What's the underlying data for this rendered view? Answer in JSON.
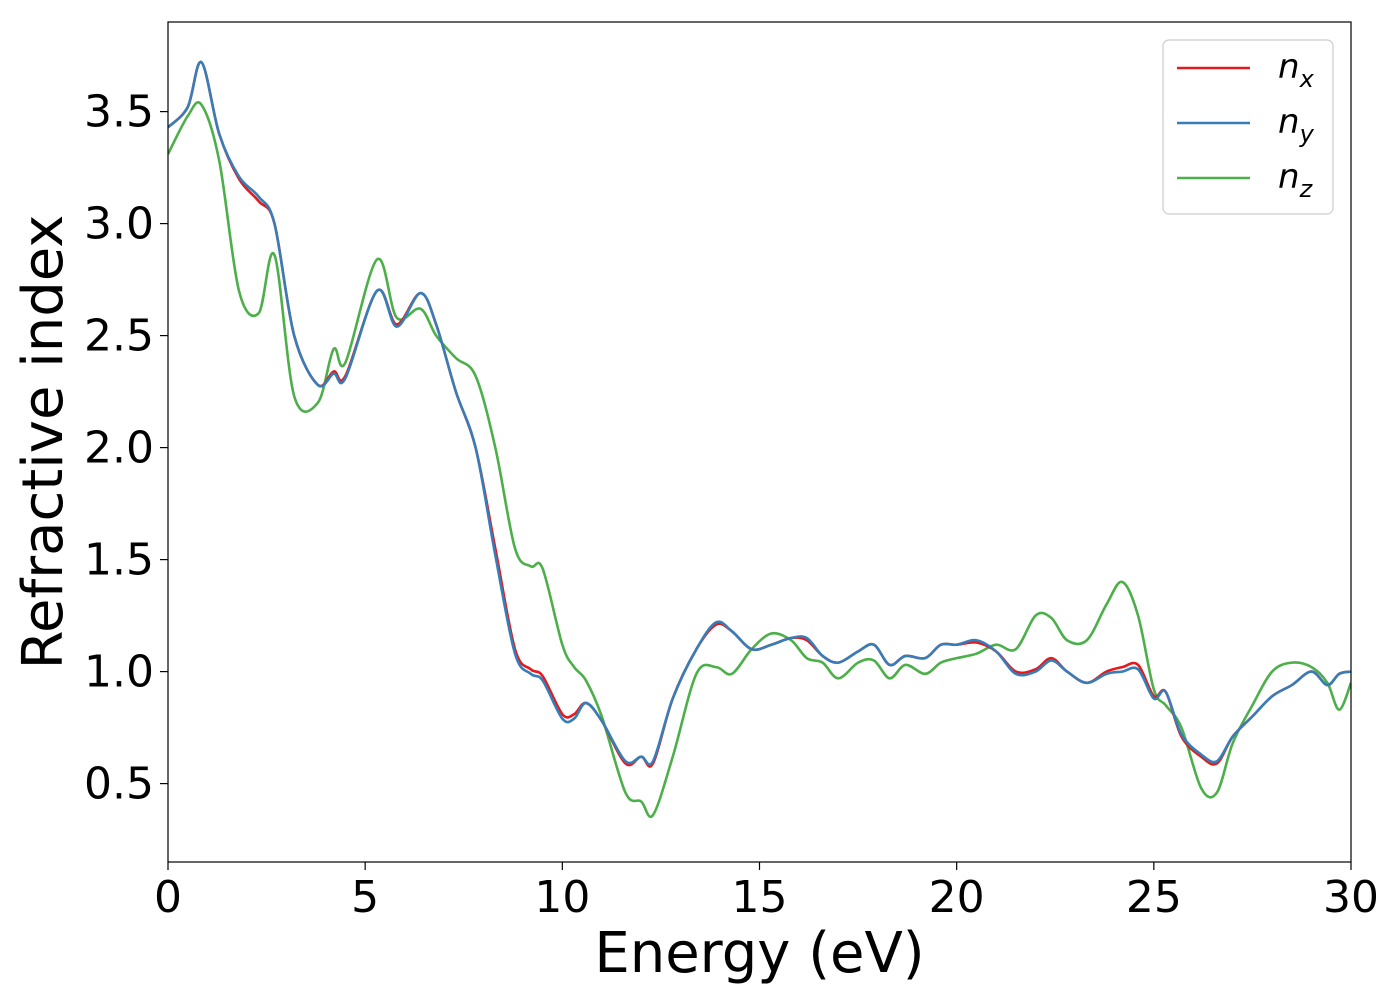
{
  "chart_data": {
    "type": "line",
    "title": "",
    "xlabel": "Energy (eV)",
    "ylabel": "Refractive index",
    "xlim": [
      0,
      30
    ],
    "ylim": [
      0.15,
      3.9
    ],
    "xticks": [
      0,
      5,
      10,
      15,
      20,
      25,
      30
    ],
    "xtick_labels": [
      "0",
      "5",
      "10",
      "15",
      "20",
      "25",
      "30"
    ],
    "yticks": [
      0.5,
      1.0,
      1.5,
      2.0,
      2.5,
      3.0,
      3.5
    ],
    "ytick_labels": [
      "0.5",
      "1.0",
      "1.5",
      "2.0",
      "2.5",
      "3.0",
      "3.5"
    ],
    "grid": false,
    "legend_position": "top-right",
    "x": [
      0,
      0.5,
      0.85,
      1.3,
      1.8,
      2.3,
      2.7,
      3.2,
      3.8,
      4.2,
      4.5,
      5.3,
      5.8,
      6.4,
      6.8,
      7.3,
      7.8,
      8.3,
      8.8,
      9.2,
      9.5,
      10.0,
      10.3,
      10.6,
      11.0,
      11.6,
      12.0,
      12.3,
      12.8,
      13.4,
      13.9,
      14.3,
      14.8,
      15.3,
      15.8,
      16.2,
      16.6,
      17.0,
      17.5,
      17.9,
      18.3,
      18.7,
      19.2,
      19.6,
      20.0,
      20.5,
      21.0,
      21.5,
      22.0,
      22.4,
      22.8,
      23.3,
      23.8,
      24.2,
      24.6,
      25.0,
      25.3,
      25.7,
      26.2,
      26.6,
      27.0,
      27.5,
      28.0,
      28.5,
      29.0,
      29.4,
      29.7,
      30.0
    ],
    "series": [
      {
        "name": "n_x",
        "color": "#e41a1c",
        "values": [
          3.43,
          3.52,
          3.72,
          3.4,
          3.2,
          3.1,
          3.0,
          2.5,
          2.28,
          2.34,
          2.32,
          2.7,
          2.55,
          2.69,
          2.55,
          2.25,
          2.0,
          1.55,
          1.1,
          1.01,
          0.98,
          0.81,
          0.81,
          0.86,
          0.78,
          0.59,
          0.62,
          0.59,
          0.88,
          1.1,
          1.21,
          1.18,
          1.1,
          1.12,
          1.15,
          1.14,
          1.07,
          1.04,
          1.09,
          1.12,
          1.03,
          1.07,
          1.06,
          1.12,
          1.12,
          1.13,
          1.09,
          1.0,
          1.01,
          1.06,
          1.0,
          0.95,
          1.0,
          1.02,
          1.03,
          0.89,
          0.91,
          0.71,
          0.62,
          0.59,
          0.71,
          0.8,
          0.89,
          0.94,
          1.0,
          0.94,
          0.99,
          1.0
        ]
      },
      {
        "name": "n_y",
        "color": "#377eb8",
        "values": [
          3.43,
          3.52,
          3.72,
          3.4,
          3.21,
          3.12,
          3.0,
          2.5,
          2.28,
          2.33,
          2.31,
          2.7,
          2.54,
          2.69,
          2.55,
          2.25,
          2.0,
          1.52,
          1.08,
          0.99,
          0.96,
          0.79,
          0.79,
          0.86,
          0.78,
          0.6,
          0.62,
          0.6,
          0.88,
          1.1,
          1.22,
          1.18,
          1.1,
          1.12,
          1.15,
          1.15,
          1.07,
          1.04,
          1.09,
          1.12,
          1.03,
          1.07,
          1.06,
          1.12,
          1.12,
          1.14,
          1.09,
          0.99,
          1.0,
          1.05,
          1.0,
          0.95,
          0.99,
          1.0,
          1.01,
          0.88,
          0.91,
          0.72,
          0.63,
          0.6,
          0.71,
          0.8,
          0.89,
          0.94,
          1.0,
          0.94,
          0.99,
          1.0
        ]
      },
      {
        "name": "n_z",
        "color": "#4daf4a",
        "values": [
          3.31,
          3.48,
          3.53,
          3.28,
          2.7,
          2.6,
          2.86,
          2.23,
          2.2,
          2.44,
          2.38,
          2.84,
          2.58,
          2.62,
          2.5,
          2.4,
          2.32,
          2.0,
          1.55,
          1.47,
          1.46,
          1.12,
          1.02,
          0.96,
          0.8,
          0.46,
          0.42,
          0.36,
          0.62,
          0.99,
          1.02,
          0.99,
          1.1,
          1.17,
          1.14,
          1.06,
          1.04,
          0.97,
          1.04,
          1.05,
          0.97,
          1.03,
          0.99,
          1.04,
          1.06,
          1.08,
          1.12,
          1.1,
          1.25,
          1.24,
          1.14,
          1.14,
          1.3,
          1.4,
          1.25,
          0.92,
          0.85,
          0.75,
          0.48,
          0.46,
          0.68,
          0.85,
          1.0,
          1.04,
          1.02,
          0.95,
          0.83,
          0.95
        ]
      }
    ]
  },
  "legend": {
    "entries": [
      {
        "base": "n",
        "sub": "x",
        "color": "#e41a1c"
      },
      {
        "base": "n",
        "sub": "y",
        "color": "#377eb8"
      },
      {
        "base": "n",
        "sub": "z",
        "color": "#4daf4a"
      }
    ]
  }
}
